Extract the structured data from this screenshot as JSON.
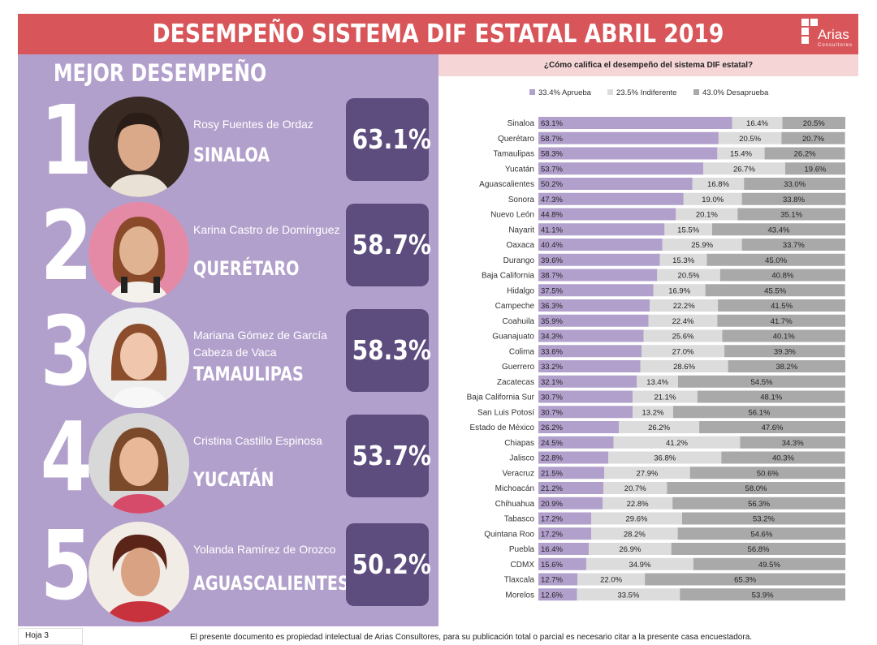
{
  "header": {
    "title": "DESEMPEÑO SISTEMA DIF ESTATAL ABRIL 2019",
    "logo_name": "Arias",
    "logo_sub": "Consultores"
  },
  "left": {
    "title": "MEJOR DESEMPEÑO",
    "ranks": [
      {
        "num": "1",
        "name": "Rosy Fuentes de Ordaz",
        "state": "SINALOA",
        "pct": "63.1%"
      },
      {
        "num": "2",
        "name": "Karina Castro de Domínguez",
        "state": "QUERÉTARO",
        "pct": "58.7%"
      },
      {
        "num": "3",
        "name": "Mariana Gómez de García Cabeza de Vaca",
        "state": "TAMAULIPAS",
        "pct": "58.3%"
      },
      {
        "num": "4",
        "name": "Cristina Castillo Espinosa",
        "state": "YUCATÁN",
        "pct": "53.7%"
      },
      {
        "num": "5",
        "name": "Yolanda Ramírez de Orozco",
        "state": "AGUASCALIENTES",
        "pct": "50.2%"
      }
    ]
  },
  "footer": {
    "page": "Hoja 3",
    "notice": "El presente documento es propiedad intelectual de Arias Consultores, para su publicación total o parcial es necesario citar a la presente casa encuestadora."
  },
  "colors": {
    "aprueba": "#b2a0cc",
    "indiferente": "#dcdcdc",
    "desaprueba": "#a9a9a9",
    "box": "#5d4c7e",
    "header": "#d8565a"
  },
  "chart_data": {
    "type": "bar",
    "orientation": "horizontal-stacked-100",
    "title": "¿Cómo califica el desempeño del sistema DIF estatal?",
    "legend_position": "top",
    "series_names": [
      "33.4% Aprueba",
      "23.5% Indiferente",
      "43.0% Desaprueba"
    ],
    "xlim": [
      0,
      100
    ],
    "categories": [
      "Sinaloa",
      "Querétaro",
      "Tamaulipas",
      "Yucatán",
      "Aguascalientes",
      "Sonora",
      "Nuevo León",
      "Nayarit",
      "Oaxaca",
      "Durango",
      "Baja California",
      "Hidalgo",
      "Campeche",
      "Coahuila",
      "Guanajuato",
      "Colima",
      "Guerrero",
      "Zacatecas",
      "Baja California Sur",
      "San Luis Potosí",
      "Estado de México",
      "Chiapas",
      "Jalisco",
      "Veracruz",
      "Michoacán",
      "Chihuahua",
      "Tabasco",
      "Quintana Roo",
      "Puebla",
      "CDMX",
      "Tlaxcala",
      "Morelos"
    ],
    "series": [
      {
        "name": "Aprueba",
        "values": [
          63.1,
          58.7,
          58.3,
          53.7,
          50.2,
          47.3,
          44.8,
          41.1,
          40.4,
          39.6,
          38.7,
          37.5,
          36.3,
          35.9,
          34.3,
          33.6,
          33.2,
          32.1,
          30.7,
          30.7,
          26.2,
          24.5,
          22.8,
          21.5,
          21.2,
          20.9,
          17.2,
          17.2,
          16.4,
          15.6,
          12.7,
          12.6
        ]
      },
      {
        "name": "Indiferente",
        "values": [
          16.4,
          20.5,
          15.4,
          26.7,
          16.8,
          19.0,
          20.1,
          15.5,
          25.9,
          15.3,
          20.5,
          16.9,
          22.2,
          22.4,
          25.6,
          27.0,
          28.6,
          13.4,
          21.1,
          13.2,
          26.2,
          41.2,
          36.8,
          27.9,
          20.7,
          22.8,
          29.6,
          28.2,
          26.9,
          34.9,
          22.0,
          33.5
        ]
      },
      {
        "name": "Desaprueba",
        "values": [
          20.5,
          20.7,
          26.2,
          19.6,
          33.0,
          33.8,
          35.1,
          43.4,
          33.7,
          45.0,
          40.8,
          45.5,
          41.5,
          41.7,
          40.1,
          39.3,
          38.2,
          54.5,
          48.1,
          56.1,
          47.6,
          34.3,
          40.3,
          50.6,
          58.0,
          56.3,
          53.2,
          54.6,
          56.8,
          49.5,
          65.3,
          53.9
        ]
      }
    ],
    "labels": [
      [
        "63.1%",
        "58.7%",
        "58.3%",
        "53.7%",
        "50.2%",
        "47.3%",
        "44.8%",
        "41.1%",
        "40.4%",
        "39.6%",
        "38.7%",
        "37.5%",
        "36.3%",
        "35.9%",
        "34.3%",
        "33.6%",
        "33.2%",
        "32.1%",
        "30.7%",
        "30.7%",
        "26.2%",
        "24.5%",
        "22.8%",
        "21.5%",
        "21.2%",
        "20.9%",
        "17.2%",
        "17.2%",
        "16.4%",
        "15.6%",
        "12.7%",
        "12.6%"
      ],
      [
        "16.4%",
        "20.5%",
        "15.4%",
        "26.7%",
        "16.8%",
        "19.0%",
        "20.1%",
        "15.5%",
        "25.9%",
        "15.3%",
        "20.5%",
        "16.9%",
        "22.2%",
        "22.4%",
        "25.6%",
        "27.0%",
        "28.6%",
        "13.4%",
        "21.1%",
        "13.2%",
        "26.2%",
        "41.2%",
        "36.8%",
        "27.9%",
        "20.7%",
        "22.8%",
        "29.6%",
        "28.2%",
        "26.9%",
        "34.9%",
        "22.0%",
        "33.5%"
      ],
      [
        "20.5%",
        "20.7%",
        "26.2%",
        "19.6%",
        "33.0%",
        "33.8%",
        "35.1%",
        "43.4%",
        "33.7%",
        "45.0%",
        "40.8%",
        "45.5%",
        "41.5%",
        "41.7%",
        "40.1%",
        "39.3%",
        "38.2%",
        "54.5%",
        "48.1%",
        "56.1%",
        "47.6%",
        "34.3%",
        "40.3%",
        "50.6%",
        "58.0%",
        "56.3%",
        "53.2%",
        "54.6%",
        "56.8%",
        "49.5%",
        "65.3%",
        "53.9%"
      ]
    ]
  }
}
